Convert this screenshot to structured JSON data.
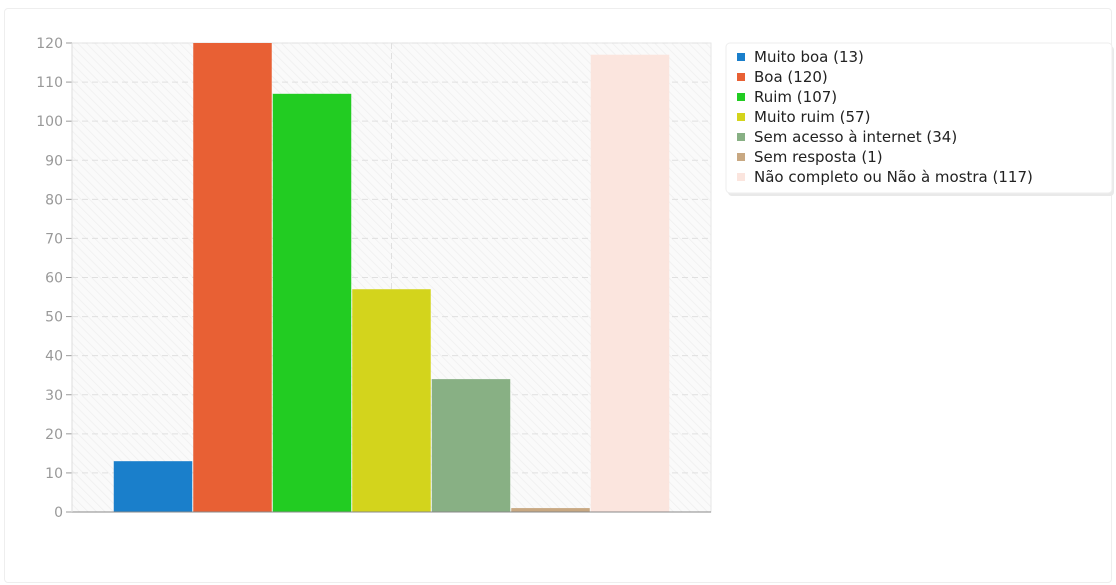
{
  "chart_data": {
    "type": "bar",
    "title": "",
    "xlabel": "",
    "ylabel": "",
    "ylim": [
      0,
      120
    ],
    "yticks": [
      0,
      10,
      20,
      30,
      40,
      50,
      60,
      70,
      80,
      90,
      100,
      110,
      120
    ],
    "grid": true,
    "legend_position": "right",
    "series": [
      {
        "name": "Muito boa (13)",
        "value": 13,
        "color": "#1a7fcb"
      },
      {
        "name": "Boa (120)",
        "value": 120,
        "color": "#e86034"
      },
      {
        "name": "Ruim (107)",
        "value": 107,
        "color": "#22cc22"
      },
      {
        "name": "Muito ruim (57)",
        "value": 57,
        "color": "#d3d41c"
      },
      {
        "name": "Sem acesso à internet (34)",
        "value": 34,
        "color": "#88b084"
      },
      {
        "name": "Sem resposta (1)",
        "value": 1,
        "color": "#c8a882"
      },
      {
        "name": "Não completo ou Não à mostra (117)",
        "value": 117,
        "color": "#fbe5de"
      }
    ]
  }
}
